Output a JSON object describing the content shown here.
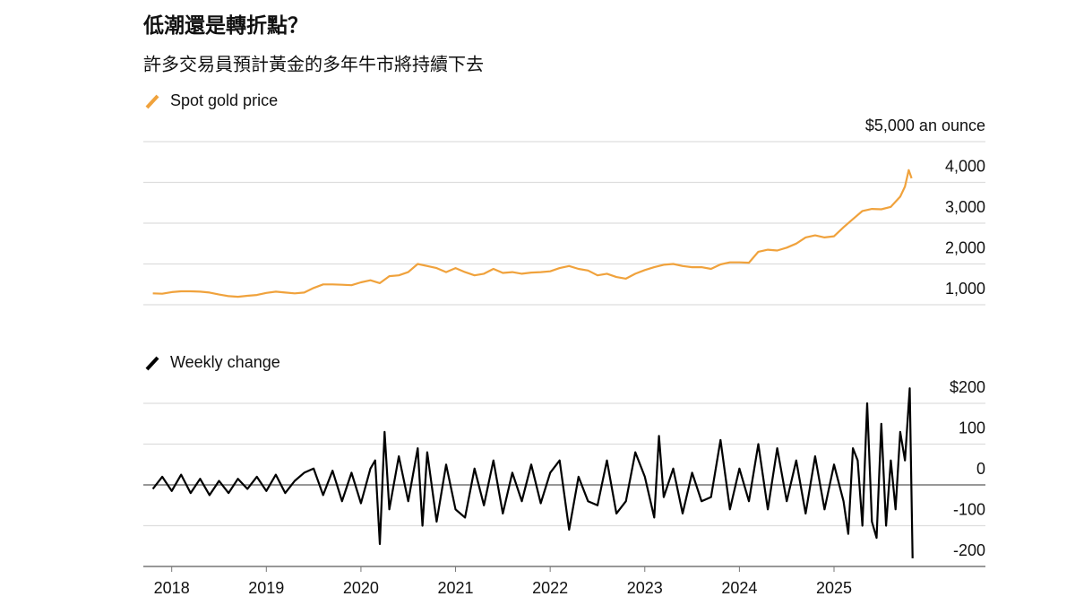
{
  "chart_data": [
    {
      "type": "line",
      "title": "低潮還是轉折點？",
      "subtitle": "許多交易員預計黃金的多年牛市將持續下去",
      "x": [
        2017.8,
        2017.9,
        2018.0,
        2018.1,
        2018.2,
        2018.3,
        2018.4,
        2018.5,
        2018.6,
        2018.7,
        2018.8,
        2018.9,
        2019.0,
        2019.1,
        2019.2,
        2019.3,
        2019.4,
        2019.5,
        2019.6,
        2019.7,
        2019.8,
        2019.9,
        2020.0,
        2020.1,
        2020.2,
        2020.3,
        2020.4,
        2020.5,
        2020.6,
        2020.7,
        2020.8,
        2020.9,
        2021.0,
        2021.1,
        2021.2,
        2021.3,
        2021.4,
        2021.5,
        2021.6,
        2021.7,
        2021.8,
        2021.9,
        2022.0,
        2022.1,
        2022.2,
        2022.3,
        2022.4,
        2022.5,
        2022.6,
        2022.7,
        2022.8,
        2022.9,
        2023.0,
        2023.1,
        2023.2,
        2023.3,
        2023.4,
        2023.5,
        2023.6,
        2023.7,
        2023.8,
        2023.9,
        2024.0,
        2024.1,
        2024.2,
        2024.3,
        2024.4,
        2024.5,
        2024.6,
        2024.7,
        2024.8,
        2024.9,
        2025.0,
        2025.1,
        2025.2,
        2025.3,
        2025.4,
        2025.5,
        2025.6,
        2025.7,
        2025.75,
        2025.79,
        2025.82
      ],
      "series": [
        {
          "name": "Spot gold price",
          "color": "#f0a23c",
          "values": [
            1280,
            1270,
            1310,
            1330,
            1330,
            1320,
            1300,
            1250,
            1210,
            1195,
            1220,
            1240,
            1290,
            1320,
            1300,
            1280,
            1300,
            1410,
            1500,
            1500,
            1490,
            1480,
            1550,
            1600,
            1530,
            1700,
            1720,
            1800,
            2000,
            1950,
            1900,
            1800,
            1900,
            1800,
            1720,
            1760,
            1880,
            1780,
            1800,
            1760,
            1790,
            1800,
            1820,
            1900,
            1950,
            1880,
            1840,
            1720,
            1760,
            1680,
            1640,
            1760,
            1850,
            1920,
            1980,
            2000,
            1950,
            1920,
            1920,
            1880,
            1990,
            2040,
            2040,
            2030,
            2300,
            2350,
            2330,
            2400,
            2500,
            2650,
            2700,
            2650,
            2680,
            2900,
            3100,
            3300,
            3350,
            3340,
            3400,
            3650,
            3900,
            4300,
            4100
          ]
        }
      ],
      "xlim": [
        2017.7,
        2026.6
      ],
      "ylim": [
        1000,
        5000
      ],
      "yticks": [
        {
          "value": 1000,
          "label": "1,000"
        },
        {
          "value": 2000,
          "label": "2,000"
        },
        {
          "value": 3000,
          "label": "3,000"
        },
        {
          "value": 4000,
          "label": "4,000"
        },
        {
          "value": 5000,
          "label": "$5,000 an ounce"
        }
      ],
      "grid": true
    },
    {
      "type": "line",
      "x": [
        2017.8,
        2017.9,
        2018.0,
        2018.1,
        2018.2,
        2018.3,
        2018.4,
        2018.5,
        2018.6,
        2018.7,
        2018.8,
        2018.9,
        2019.0,
        2019.1,
        2019.2,
        2019.3,
        2019.4,
        2019.5,
        2019.6,
        2019.7,
        2019.8,
        2019.9,
        2020.0,
        2020.1,
        2020.15,
        2020.2,
        2020.25,
        2020.3,
        2020.4,
        2020.5,
        2020.6,
        2020.65,
        2020.7,
        2020.8,
        2020.9,
        2021.0,
        2021.1,
        2021.2,
        2021.3,
        2021.4,
        2021.5,
        2021.6,
        2021.7,
        2021.8,
        2021.9,
        2022.0,
        2022.1,
        2022.2,
        2022.3,
        2022.4,
        2022.5,
        2022.6,
        2022.7,
        2022.8,
        2022.9,
        2023.0,
        2023.1,
        2023.15,
        2023.2,
        2023.3,
        2023.4,
        2023.5,
        2023.6,
        2023.7,
        2023.8,
        2023.9,
        2024.0,
        2024.1,
        2024.2,
        2024.3,
        2024.4,
        2024.5,
        2024.6,
        2024.7,
        2024.8,
        2024.9,
        2025.0,
        2025.1,
        2025.15,
        2025.2,
        2025.25,
        2025.3,
        2025.35,
        2025.4,
        2025.45,
        2025.5,
        2025.55,
        2025.6,
        2025.65,
        2025.7,
        2025.75,
        2025.8,
        2025.83
      ],
      "series": [
        {
          "name": "Weekly change",
          "color": "#000000",
          "values": [
            -10,
            20,
            -15,
            25,
            -20,
            15,
            -25,
            10,
            -20,
            15,
            -10,
            20,
            -15,
            25,
            -20,
            10,
            30,
            40,
            -25,
            35,
            -40,
            30,
            -45,
            40,
            60,
            -145,
            130,
            -60,
            70,
            -40,
            90,
            -100,
            80,
            -90,
            50,
            -60,
            -80,
            40,
            -50,
            60,
            -70,
            30,
            -40,
            50,
            -45,
            30,
            60,
            -110,
            20,
            -40,
            -50,
            60,
            -70,
            -40,
            80,
            20,
            -80,
            120,
            -30,
            40,
            -70,
            30,
            -40,
            -30,
            110,
            -60,
            40,
            -40,
            100,
            -60,
            90,
            -40,
            60,
            -70,
            70,
            -60,
            50,
            -40,
            -120,
            90,
            60,
            -100,
            200,
            -90,
            -130,
            150,
            -100,
            60,
            -60,
            130,
            60,
            237,
            -180
          ]
        }
      ],
      "xlim": [
        2017.7,
        2026.6
      ],
      "xticks": [
        2018,
        2019,
        2020,
        2021,
        2022,
        2023,
        2024,
        2025
      ],
      "ylim": [
        -200,
        200
      ],
      "yticks": [
        -200,
        -100,
        0,
        100,
        {
          "value": 200,
          "label": "$200"
        }
      ],
      "grid": true
    }
  ]
}
